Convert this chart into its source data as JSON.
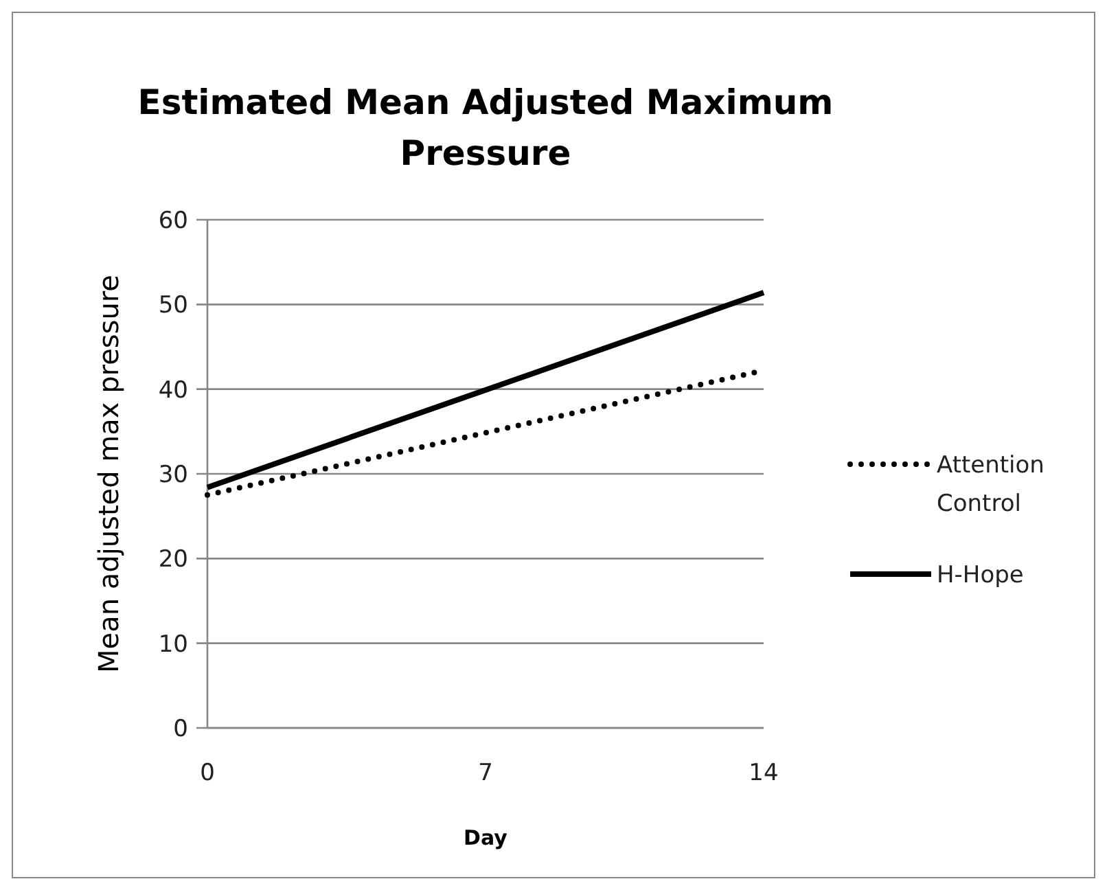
{
  "chart_data": {
    "type": "line",
    "title": "Estimated Mean Adjusted Maximum Pressure",
    "xlabel": "Day",
    "ylabel": "Mean adjusted max pressure",
    "x": [
      0,
      14
    ],
    "series": [
      {
        "name": "Attention Control",
        "color": "#000000",
        "values": [
          27.5,
          42.2
        ],
        "line_style": "dotted"
      },
      {
        "name": "H-Hope",
        "color": "#000000",
        "values": [
          28.4,
          51.4
        ],
        "line_style": "solid"
      }
    ],
    "xlim": [
      0,
      14
    ],
    "xticks": [
      0,
      7,
      14
    ],
    "ylim": [
      0,
      60
    ],
    "yticks": [
      0,
      10,
      20,
      30,
      40,
      50,
      60
    ],
    "grid": "y",
    "legend": "right"
  }
}
